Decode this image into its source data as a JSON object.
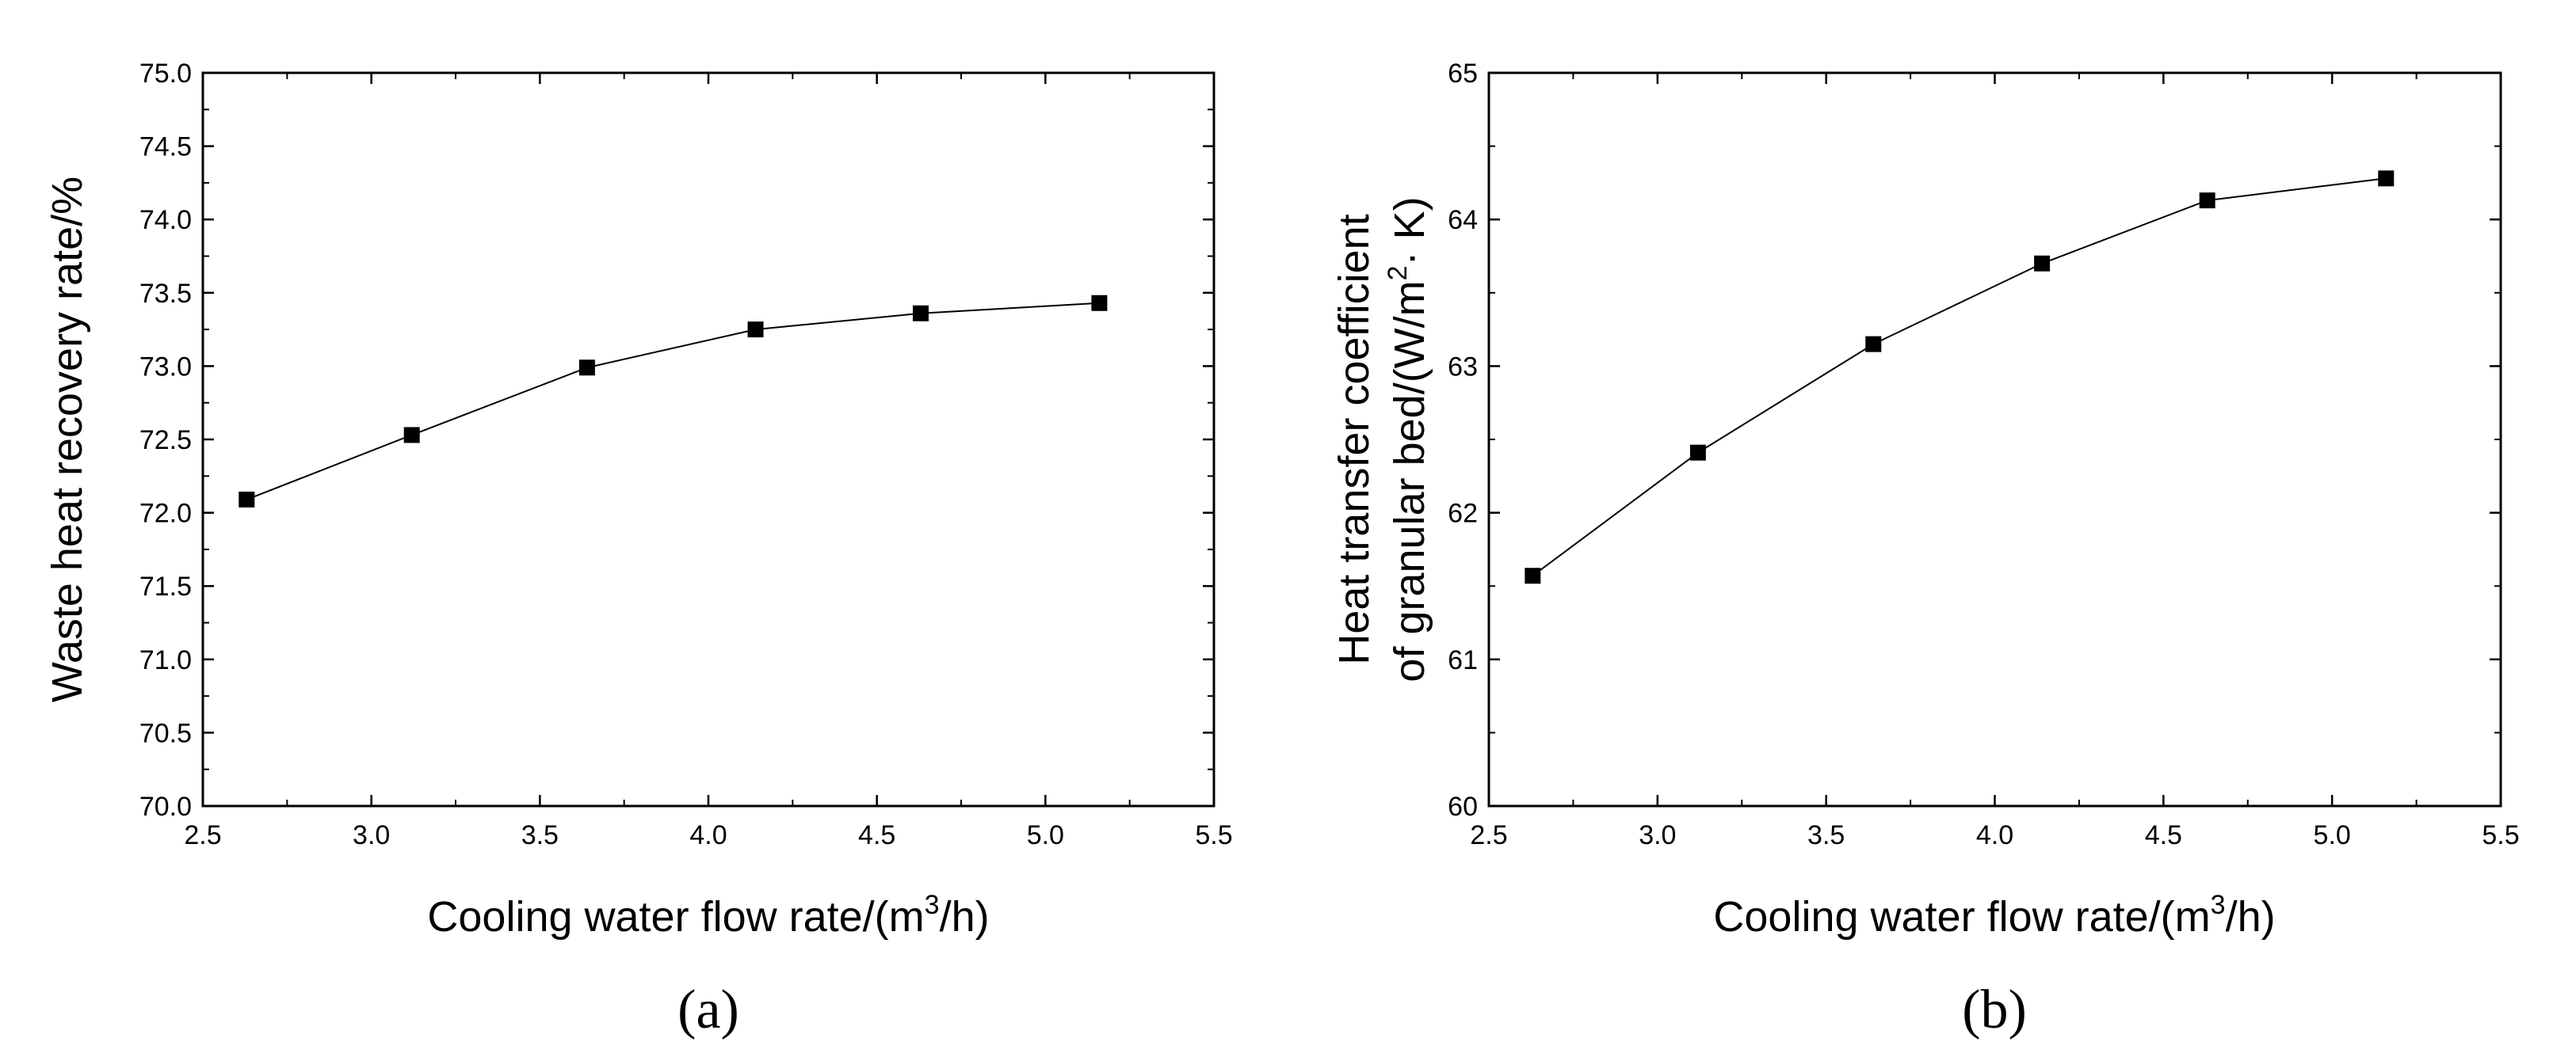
{
  "chart_data": [
    {
      "type": "line",
      "panel_label": "(a)",
      "x": [
        2.63,
        3.12,
        3.64,
        4.14,
        4.63,
        5.16
      ],
      "series": [
        {
          "name": "Waste heat recovery rate",
          "values": [
            72.09,
            72.53,
            72.99,
            73.25,
            73.36,
            73.43
          ]
        }
      ],
      "title": "",
      "xlabel": "Cooling water flow rate/(m",
      "xlabel_sup": "3",
      "xlabel_end": "/h)",
      "ylabel": "Waste heat recovery rate/%",
      "xlim": [
        2.5,
        5.5
      ],
      "ylim": [
        70.0,
        75.0
      ],
      "xticks": [
        "2.5",
        "3.0",
        "3.5",
        "4.0",
        "4.5",
        "5.0",
        "5.5"
      ],
      "yticks": [
        "70.0",
        "70.5",
        "71.0",
        "71.5",
        "72.0",
        "72.5",
        "73.0",
        "73.5",
        "74.0",
        "74.5",
        "75.0"
      ],
      "x_minor_step": 0.25,
      "y_minor_step": 0.25,
      "grid": false,
      "marker": "square",
      "color": "#000000"
    },
    {
      "type": "line",
      "panel_label": "(b)",
      "x": [
        2.63,
        3.12,
        3.64,
        4.14,
        4.63,
        5.16
      ],
      "series": [
        {
          "name": "Heat transfer coefficient of granular bed",
          "values": [
            61.57,
            62.41,
            63.15,
            63.7,
            64.13,
            64.28
          ]
        }
      ],
      "title": "",
      "xlabel": "Cooling water flow rate/(m",
      "xlabel_sup": "3",
      "xlabel_end": "/h)",
      "ylabel_line1": "Heat transfer coefficient",
      "ylabel_line2": "of granular bed/(W/m",
      "ylabel_line2_sup": "2",
      "ylabel_line2_end": "· K)",
      "xlim": [
        2.5,
        5.5
      ],
      "ylim": [
        60,
        65
      ],
      "xticks": [
        "2.5",
        "3.0",
        "3.5",
        "4.0",
        "4.5",
        "5.0",
        "5.5"
      ],
      "yticks": [
        "60",
        "61",
        "62",
        "63",
        "64",
        "65"
      ],
      "x_minor_step": 0.25,
      "y_minor_step": 0.5,
      "grid": false,
      "marker": "square",
      "color": "#000000"
    }
  ]
}
